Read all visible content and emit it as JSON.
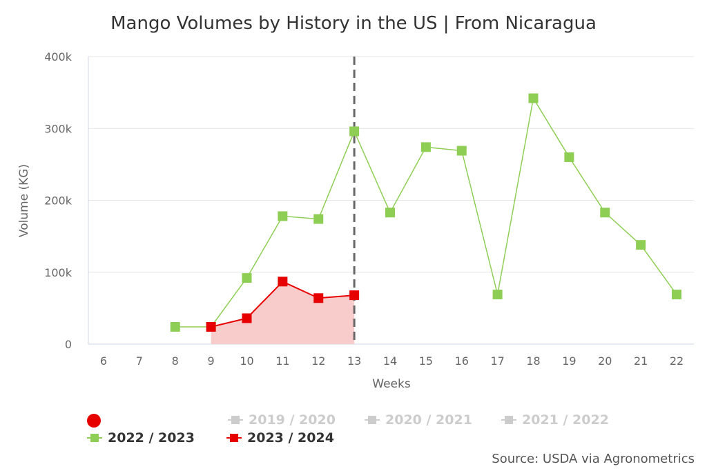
{
  "chart_data": {
    "type": "line",
    "title": "Mango Volumes by History in the US | From Nicaragua",
    "xlabel": "Weeks",
    "ylabel": "Volume (KG)",
    "x": [
      6,
      7,
      8,
      9,
      10,
      11,
      12,
      13,
      14,
      15,
      16,
      17,
      18,
      19,
      20,
      21,
      22
    ],
    "xlim": [
      6,
      22
    ],
    "ylim": [
      0,
      400000
    ],
    "yticks": [
      0,
      100000,
      200000,
      300000,
      400000
    ],
    "ytick_labels": [
      "0",
      "100k",
      "200k",
      "300k",
      "400k"
    ],
    "grid": true,
    "current_week_marker": 13,
    "series": [
      {
        "name": "2022 / 2023",
        "color": "#8fce54",
        "x": [
          8,
          9,
          10,
          11,
          12,
          13,
          14,
          15,
          16,
          17,
          18,
          19,
          20,
          21,
          22
        ],
        "values": [
          24000,
          24000,
          92000,
          178000,
          174000,
          296000,
          183000,
          274000,
          269000,
          69000,
          342000,
          260000,
          183000,
          138000,
          69000
        ]
      },
      {
        "name": "2023 / 2024",
        "color": "#e60000",
        "fill": "#f9cccc",
        "x": [
          9,
          10,
          11,
          12,
          13
        ],
        "values": [
          24000,
          36000,
          87000,
          64000,
          68000
        ]
      }
    ],
    "legend": {
      "placement": "bottom-left",
      "hidden_items": [
        "2019 / 2020",
        "2020 / 2021",
        "2021 / 2022"
      ],
      "hidden_color": "#cccccc"
    },
    "source": "Source: USDA via Agronometrics"
  }
}
